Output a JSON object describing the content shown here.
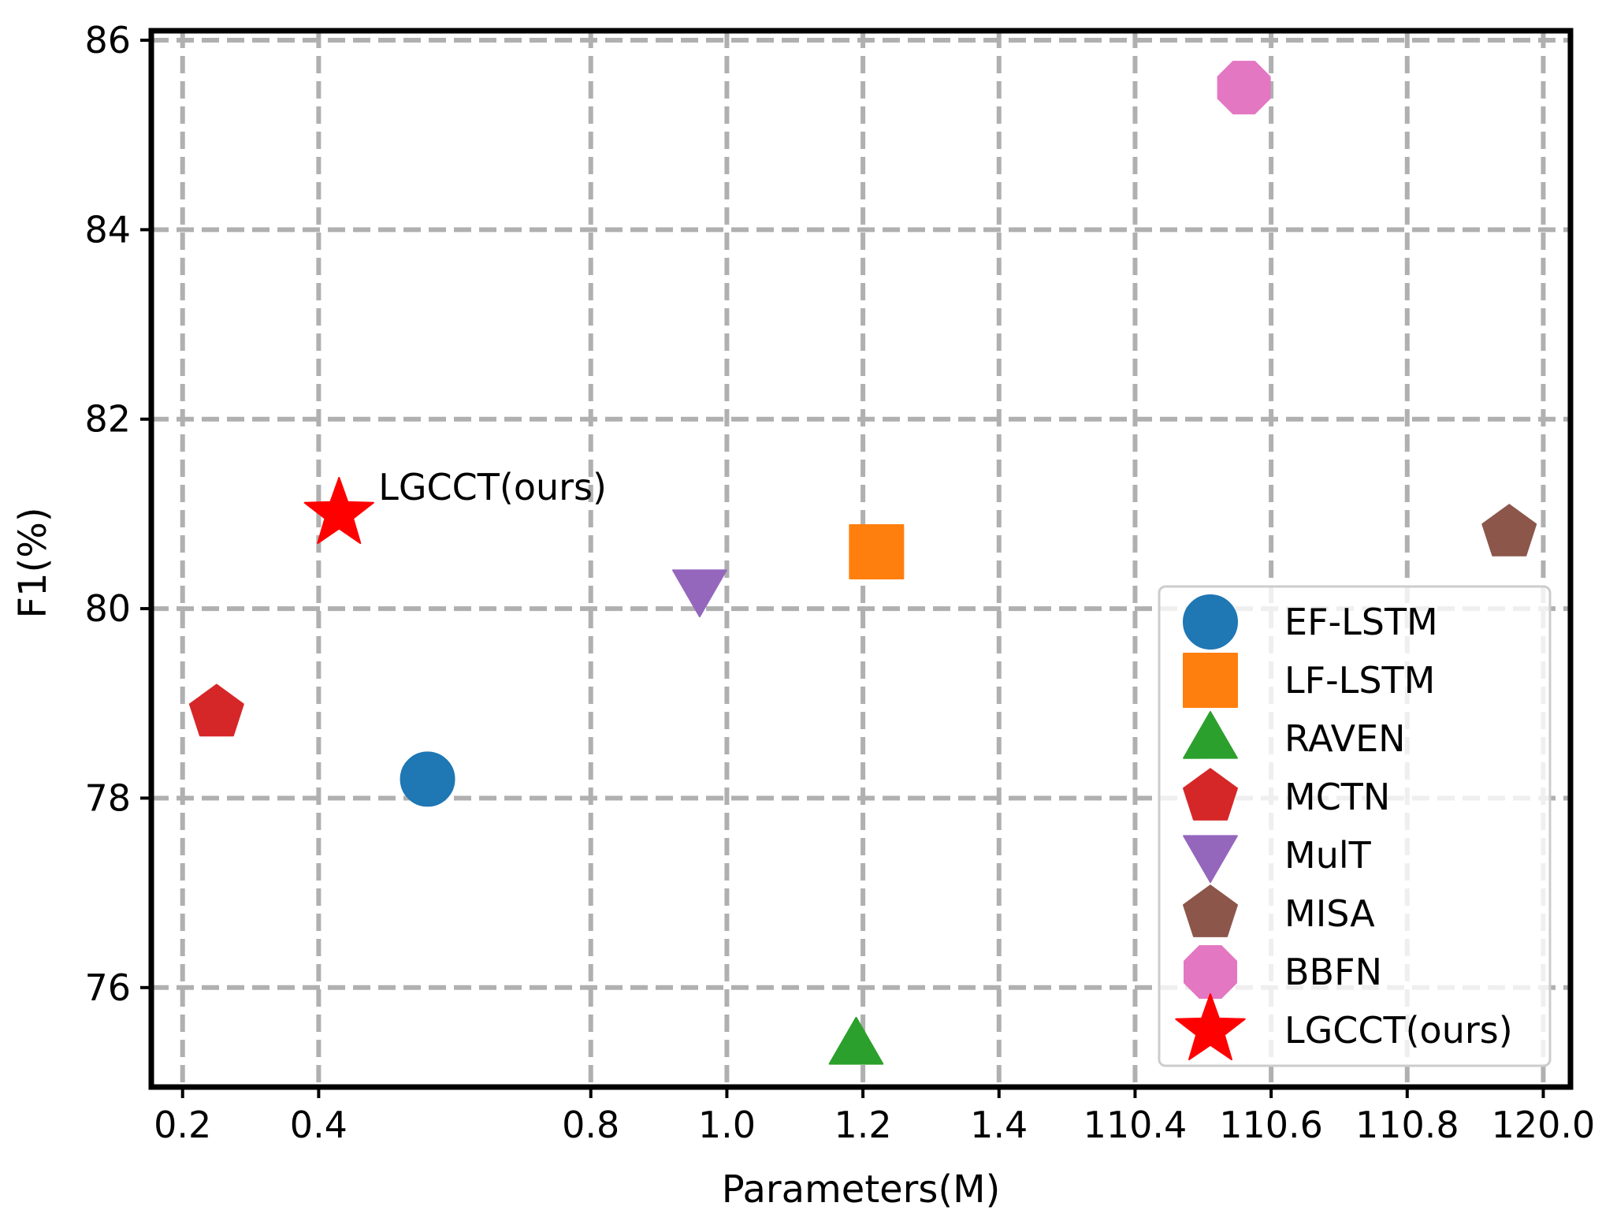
{
  "chart_data": {
    "type": "scatter",
    "title": "",
    "xlabel": "Parameters(M)",
    "ylabel": "F1(%)",
    "x_scale": "categorical-positioned",
    "x_ticks": [
      {
        "pos": 0,
        "label": "0.2"
      },
      {
        "pos": 1,
        "label": "0.4"
      },
      {
        "pos": 3,
        "label": "0.8"
      },
      {
        "pos": 4,
        "label": "1.0"
      },
      {
        "pos": 5,
        "label": "1.2"
      },
      {
        "pos": 6,
        "label": "1.4"
      },
      {
        "pos": 7,
        "label": "110.4"
      },
      {
        "pos": 8,
        "label": "110.6"
      },
      {
        "pos": 9,
        "label": "110.8"
      },
      {
        "pos": 10,
        "label": "120.0"
      }
    ],
    "xlim": [
      -0.23,
      10.2
    ],
    "ylim": [
      74.95,
      86.1
    ],
    "y_ticks": [
      76,
      78,
      80,
      82,
      84,
      86
    ],
    "grid": true,
    "legend_position": "lower-right",
    "series": [
      {
        "name": "EF-LSTM",
        "marker": "circle",
        "color": "#1f77b4",
        "x": 1.8,
        "y": 78.2
      },
      {
        "name": "LF-LSTM",
        "marker": "square",
        "color": "#ff7f0e",
        "x": 5.1,
        "y": 80.6
      },
      {
        "name": "RAVEN",
        "marker": "triangle-up",
        "color": "#2ca02c",
        "x": 4.95,
        "y": 75.4
      },
      {
        "name": "MCTN",
        "marker": "pentagon",
        "color": "#d62728",
        "x": 0.25,
        "y": 78.9
      },
      {
        "name": "MulT",
        "marker": "triangle-down",
        "color": "#9467bd",
        "x": 3.8,
        "y": 80.2
      },
      {
        "name": "MISA",
        "marker": "pentagon",
        "color": "#8c564b",
        "x": 9.75,
        "y": 80.8
      },
      {
        "name": "BBFN",
        "marker": "octagon",
        "color": "#e377c2",
        "x": 7.8,
        "y": 85.5
      },
      {
        "name": "LGCCT(ours)",
        "marker": "star",
        "color": "#ff0000",
        "x": 1.15,
        "y": 81.0
      }
    ],
    "annotations": [
      {
        "text": "LGCCT(ours)",
        "x": 1.15,
        "y": 81.0
      }
    ]
  }
}
